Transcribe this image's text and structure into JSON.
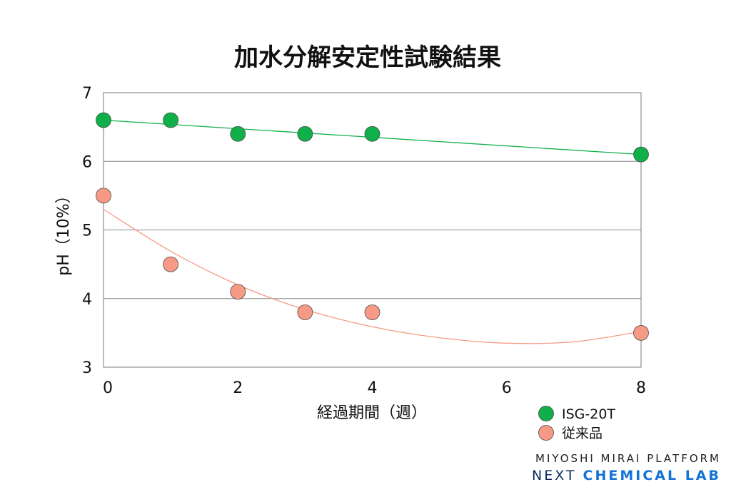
{
  "chart_data": {
    "type": "scatter",
    "title": "加水分解安定性試験結果",
    "xlabel": "経過期間（週）",
    "ylabel": "pH（10%）",
    "xlim": [
      0,
      8
    ],
    "ylim": [
      3,
      7
    ],
    "xticks": [
      0,
      2,
      4,
      6,
      8
    ],
    "yticks": [
      3,
      4,
      5,
      6,
      7
    ],
    "grid": true,
    "legend_position": "bottom-right",
    "series": [
      {
        "name": "ISG-20T",
        "color": "#0fb04a",
        "x": [
          0,
          1,
          2,
          3,
          4,
          8
        ],
        "y": [
          6.6,
          6.6,
          6.4,
          6.4,
          6.4,
          6.1
        ],
        "trend": "linear",
        "trend_points": [
          [
            0,
            6.6
          ],
          [
            8,
            6.1
          ]
        ]
      },
      {
        "name": "従来品",
        "color": "#f79a85",
        "x": [
          0,
          1,
          2,
          3,
          4,
          8
        ],
        "y": [
          5.5,
          4.5,
          4.1,
          3.8,
          3.8,
          3.5
        ],
        "trend": "polynomial",
        "trend_points": [
          [
            0,
            5.3
          ],
          [
            1,
            4.69
          ],
          [
            2,
            4.2
          ],
          [
            3,
            3.84
          ],
          [
            4,
            3.59
          ],
          [
            5,
            3.43
          ],
          [
            6,
            3.35
          ],
          [
            7,
            3.37
          ],
          [
            8,
            3.52
          ]
        ]
      }
    ]
  },
  "brand": {
    "line1": "MIYOSHI MIRAI PLATFORM",
    "line2_a": "NEXT ",
    "line2_b": "CHEMICAL LAB"
  }
}
